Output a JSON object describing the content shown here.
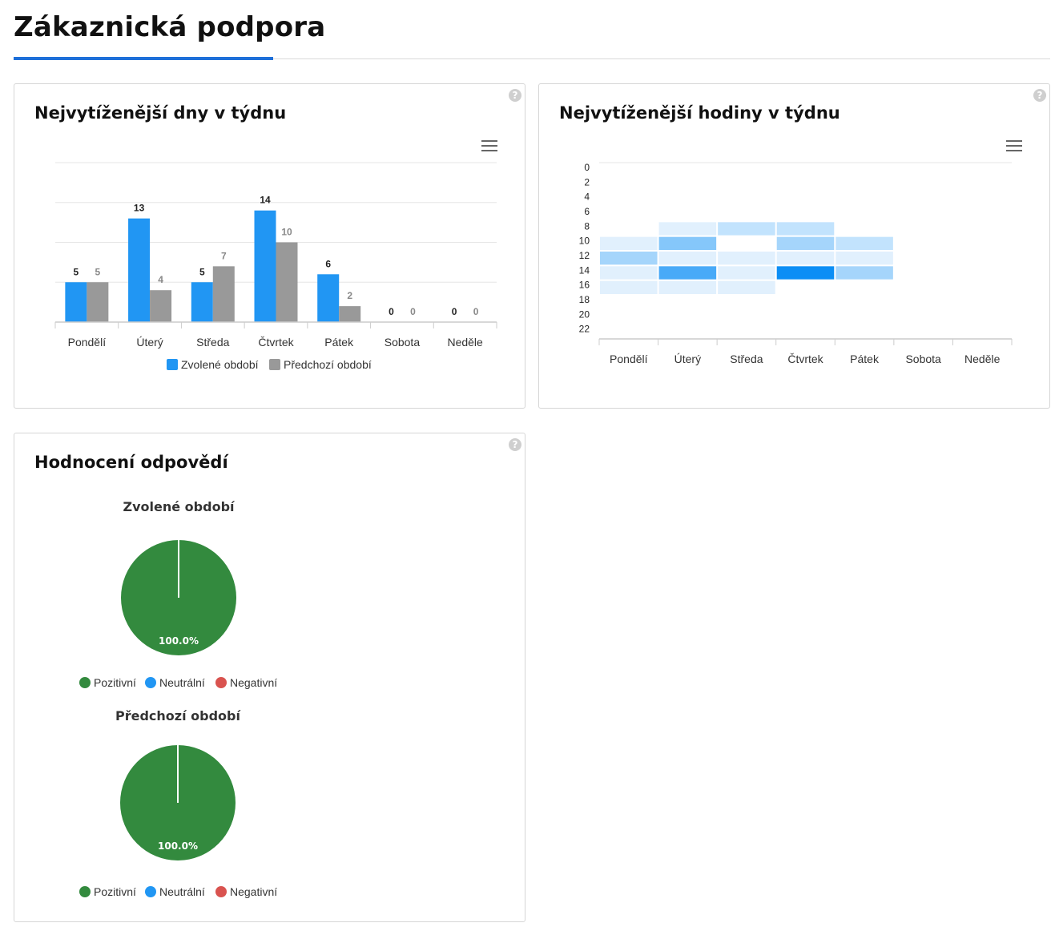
{
  "page": {
    "title": "Zákaznická podpora"
  },
  "cards": {
    "days": {
      "title": "Nejvytíženější dny v týdnu",
      "help": "?"
    },
    "hours": {
      "title": "Nejvytíženější hodiny v týdnu",
      "help": "?"
    },
    "ratings": {
      "title": "Hodnocení odpovědí",
      "help": "?"
    }
  },
  "chart_data": [
    {
      "type": "bar",
      "categories": [
        "Pondělí",
        "Úterý",
        "Středa",
        "Čtvrtek",
        "Pátek",
        "Sobota",
        "Neděle"
      ],
      "series": [
        {
          "name": "Zvolené období",
          "values": [
            5,
            13,
            5,
            14,
            6,
            0,
            0
          ],
          "color": "#2196f3"
        },
        {
          "name": "Předchozí období",
          "values": [
            5,
            4,
            7,
            10,
            2,
            0,
            0
          ],
          "color": "#999999"
        }
      ],
      "ylim": [
        0,
        20
      ],
      "grid": true,
      "legend": "bottom-center"
    },
    {
      "type": "heatmap",
      "x": [
        "Pondělí",
        "Úterý",
        "Středa",
        "Čtvrtek",
        "Pátek",
        "Sobota",
        "Neděle"
      ],
      "y_ticks": [
        "0",
        "2",
        "4",
        "6",
        "8",
        "10",
        "12",
        "14",
        "16",
        "18",
        "20",
        "22"
      ],
      "color": "#0b8ef5",
      "cells": [
        {
          "day": 1,
          "hour": 8,
          "intensity": 0.12
        },
        {
          "day": 2,
          "hour": 8,
          "intensity": 0.25
        },
        {
          "day": 3,
          "hour": 8,
          "intensity": 0.25
        },
        {
          "day": 0,
          "hour": 10,
          "intensity": 0.12
        },
        {
          "day": 1,
          "hour": 10,
          "intensity": 0.5
        },
        {
          "day": 3,
          "hour": 10,
          "intensity": 0.37
        },
        {
          "day": 4,
          "hour": 10,
          "intensity": 0.25
        },
        {
          "day": 0,
          "hour": 12,
          "intensity": 0.37
        },
        {
          "day": 1,
          "hour": 12,
          "intensity": 0.12
        },
        {
          "day": 2,
          "hour": 12,
          "intensity": 0.12
        },
        {
          "day": 3,
          "hour": 12,
          "intensity": 0.12
        },
        {
          "day": 4,
          "hour": 12,
          "intensity": 0.12
        },
        {
          "day": 0,
          "hour": 14,
          "intensity": 0.12
        },
        {
          "day": 1,
          "hour": 14,
          "intensity": 0.75
        },
        {
          "day": 2,
          "hour": 14,
          "intensity": 0.12
        },
        {
          "day": 3,
          "hour": 14,
          "intensity": 1.0
        },
        {
          "day": 4,
          "hour": 14,
          "intensity": 0.37
        },
        {
          "day": 0,
          "hour": 16,
          "intensity": 0.12
        },
        {
          "day": 1,
          "hour": 16,
          "intensity": 0.12
        },
        {
          "day": 2,
          "hour": 16,
          "intensity": 0.12
        }
      ]
    },
    {
      "type": "pie",
      "title": "Zvolené období",
      "slices": [
        {
          "name": "Pozitivní",
          "value": 100.0,
          "color": "#338a3e"
        },
        {
          "name": "Neutrální",
          "value": 0,
          "color": "#2196f3"
        },
        {
          "name": "Negativní",
          "value": 0,
          "color": "#d9534f"
        }
      ],
      "label": "100.0%"
    },
    {
      "type": "pie",
      "title": "Předchozí období",
      "slices": [
        {
          "name": "Pozitivní",
          "value": 100.0,
          "color": "#338a3e"
        },
        {
          "name": "Neutrální",
          "value": 0,
          "color": "#2196f3"
        },
        {
          "name": "Negativní",
          "value": 0,
          "color": "#d9534f"
        }
      ],
      "label": "100.0%"
    }
  ]
}
